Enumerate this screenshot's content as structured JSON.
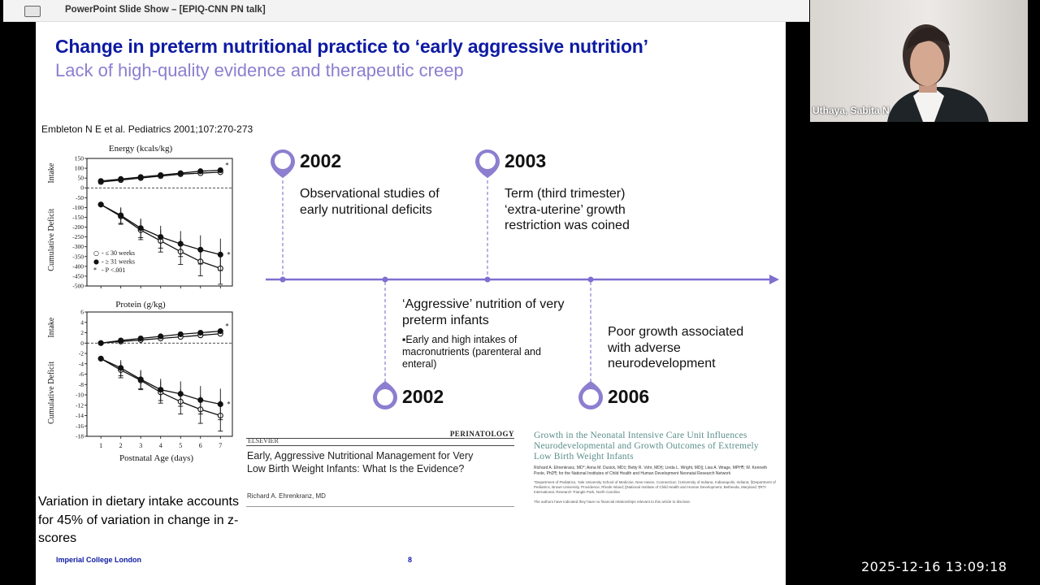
{
  "window": {
    "title": "PowerPoint Slide Show – [EPIQ-CNN PN talk]"
  },
  "slide": {
    "title": "Change in preterm nutritional practice to ‘early aggressive nutrition’",
    "subtitle": "Lack of high-quality evidence and therapeutic creep",
    "citation": "Embleton N E et al. Pediatrics 2001;107:270-273",
    "variation_note": "Variation in dietary intake accounts for 45% of variation in change in z-scores",
    "footer": {
      "institution": "Imperial College London",
      "page_number": "8"
    }
  },
  "chart_data": [
    {
      "type": "line",
      "title": "Energy (kcals/kg)",
      "xlabel": "",
      "ylabel_top": "Intake",
      "ylabel_bottom": "Cumulative Deficit",
      "x": [
        1,
        2,
        3,
        4,
        5,
        6,
        7
      ],
      "ylim": [
        -500,
        150
      ],
      "yticks": [
        150,
        100,
        50,
        0,
        -50,
        -100,
        -150,
        -200,
        -250,
        -300,
        -350,
        -400,
        -450,
        -500
      ],
      "series": [
        {
          "name": "≤ 30 weeks",
          "marker": "open",
          "part": "intake",
          "values": [
            30,
            40,
            50,
            60,
            70,
            75,
            80
          ]
        },
        {
          "name": "≥ 31 weeks",
          "marker": "filled",
          "part": "intake",
          "values": [
            35,
            45,
            55,
            65,
            75,
            85,
            90
          ]
        },
        {
          "name": "≤ 30 weeks",
          "marker": "open",
          "part": "deficit",
          "values": [
            -85,
            -145,
            -215,
            -270,
            -325,
            -375,
            -410
          ]
        },
        {
          "name": "≥ 31 weeks",
          "marker": "filled",
          "part": "deficit",
          "values": [
            -85,
            -140,
            -205,
            -250,
            -285,
            -315,
            -340
          ]
        }
      ],
      "legend": [
        "≤ 30 weeks",
        "≥ 31 weeks",
        "P <.001"
      ],
      "legend_symbols": [
        "○",
        "●",
        "*"
      ],
      "legend_prefix": "-",
      "annotations": [
        "*",
        "*"
      ]
    },
    {
      "type": "line",
      "title": "Protein (g/kg)",
      "xlabel": "Postnatal Age (days)",
      "ylabel_top": "Intake",
      "ylabel_bottom": "Cumulative Deficit",
      "x": [
        1,
        2,
        3,
        4,
        5,
        6,
        7
      ],
      "xticks": [
        "1",
        "2",
        "3",
        "4",
        "5",
        "6",
        "7"
      ],
      "ylim": [
        -18,
        6
      ],
      "yticks": [
        6,
        4,
        2,
        0,
        -2,
        -4,
        -6,
        -8,
        -10,
        -12,
        -14,
        -16,
        -18
      ],
      "series": [
        {
          "name": "≤ 30 weeks",
          "marker": "open",
          "part": "intake",
          "values": [
            0,
            0.3,
            0.6,
            0.9,
            1.2,
            1.5,
            1.8
          ]
        },
        {
          "name": "≥ 31 weeks",
          "marker": "filled",
          "part": "intake",
          "values": [
            0,
            0.5,
            0.9,
            1.3,
            1.7,
            2.0,
            2.3
          ]
        },
        {
          "name": "≤ 30 weeks",
          "marker": "open",
          "part": "deficit",
          "values": [
            -3,
            -5.2,
            -7.2,
            -9.5,
            -11.3,
            -12.8,
            -14
          ]
        },
        {
          "name": "≥ 31 weeks",
          "marker": "filled",
          "part": "deficit",
          "values": [
            -3,
            -4.8,
            -7,
            -9,
            -9.8,
            -11,
            -11.8
          ]
        }
      ],
      "annotations": [
        "*",
        "*"
      ]
    }
  ],
  "timeline": {
    "events": [
      {
        "year": "2002",
        "position": "top",
        "text": "Observational studies of early nutritional deficits"
      },
      {
        "year": "2003",
        "position": "top",
        "text": "Term (third trimester) ‘extra-uterine’ growth restriction was coined"
      },
      {
        "year": "2002",
        "position": "bottom",
        "text": "‘Aggressive’ nutrition of very preterm infants",
        "bullet": "▪Early and high intakes of macronutrients (parenteral and enteral)"
      },
      {
        "year": "2006",
        "position": "bottom",
        "text": "Poor growth associated with adverse neurodevelopment"
      }
    ],
    "accent_color": "#8d7ed0",
    "line_color": "#7f6fd0"
  },
  "references": [
    {
      "publisher": "ELSEVIER",
      "journal": "PERINATOLOGY",
      "title": "Early, Aggressive Nutritional Management for Very Low Birth Weight Infants: What Is the Evidence?",
      "author": "Richard A. Ehrenkranz, MD"
    },
    {
      "title": "Growth in the Neonatal Intensive Care Unit Influences Neurodevelopmental and Growth Outcomes of Extremely Low Birth Weight Infants",
      "authors": "Richard A. Ehrenkranz, MD*; Anna M. Dusick, MD‡; Betty R. Vohr, MD§; Linda L. Wright, MD||; Lisa A. Wrage, MPH¶; W. Kenneth Poole, PhD¶; for the National Institutes of Child Health and Human Development Neonatal Research Network",
      "affiliations": "*Department of Pediatrics, Yale University School of Medicine, New Haven, Connecticut; ‡University of Indiana, Indianapolis, Indiana; §Department of Pediatrics, Brown University, Providence, Rhode Island; ||National Institute of Child Health and Human Development, Bethesda, Maryland; ¶RTI International, Research Triangle Park, North Carolina",
      "note": "The authors have indicated they have no financial relationships relevant to this article to disclose."
    }
  ],
  "video": {
    "participant_name": "Uthaya, Sabita N"
  },
  "timestamp": "2025-12-16  13:09:18",
  "colors": {
    "title": "#0d1aa3",
    "subtitle": "#8d7ed0",
    "ref2_heading": "#5b8f8a"
  },
  "icons": {
    "window": "presentation-window-icon"
  }
}
